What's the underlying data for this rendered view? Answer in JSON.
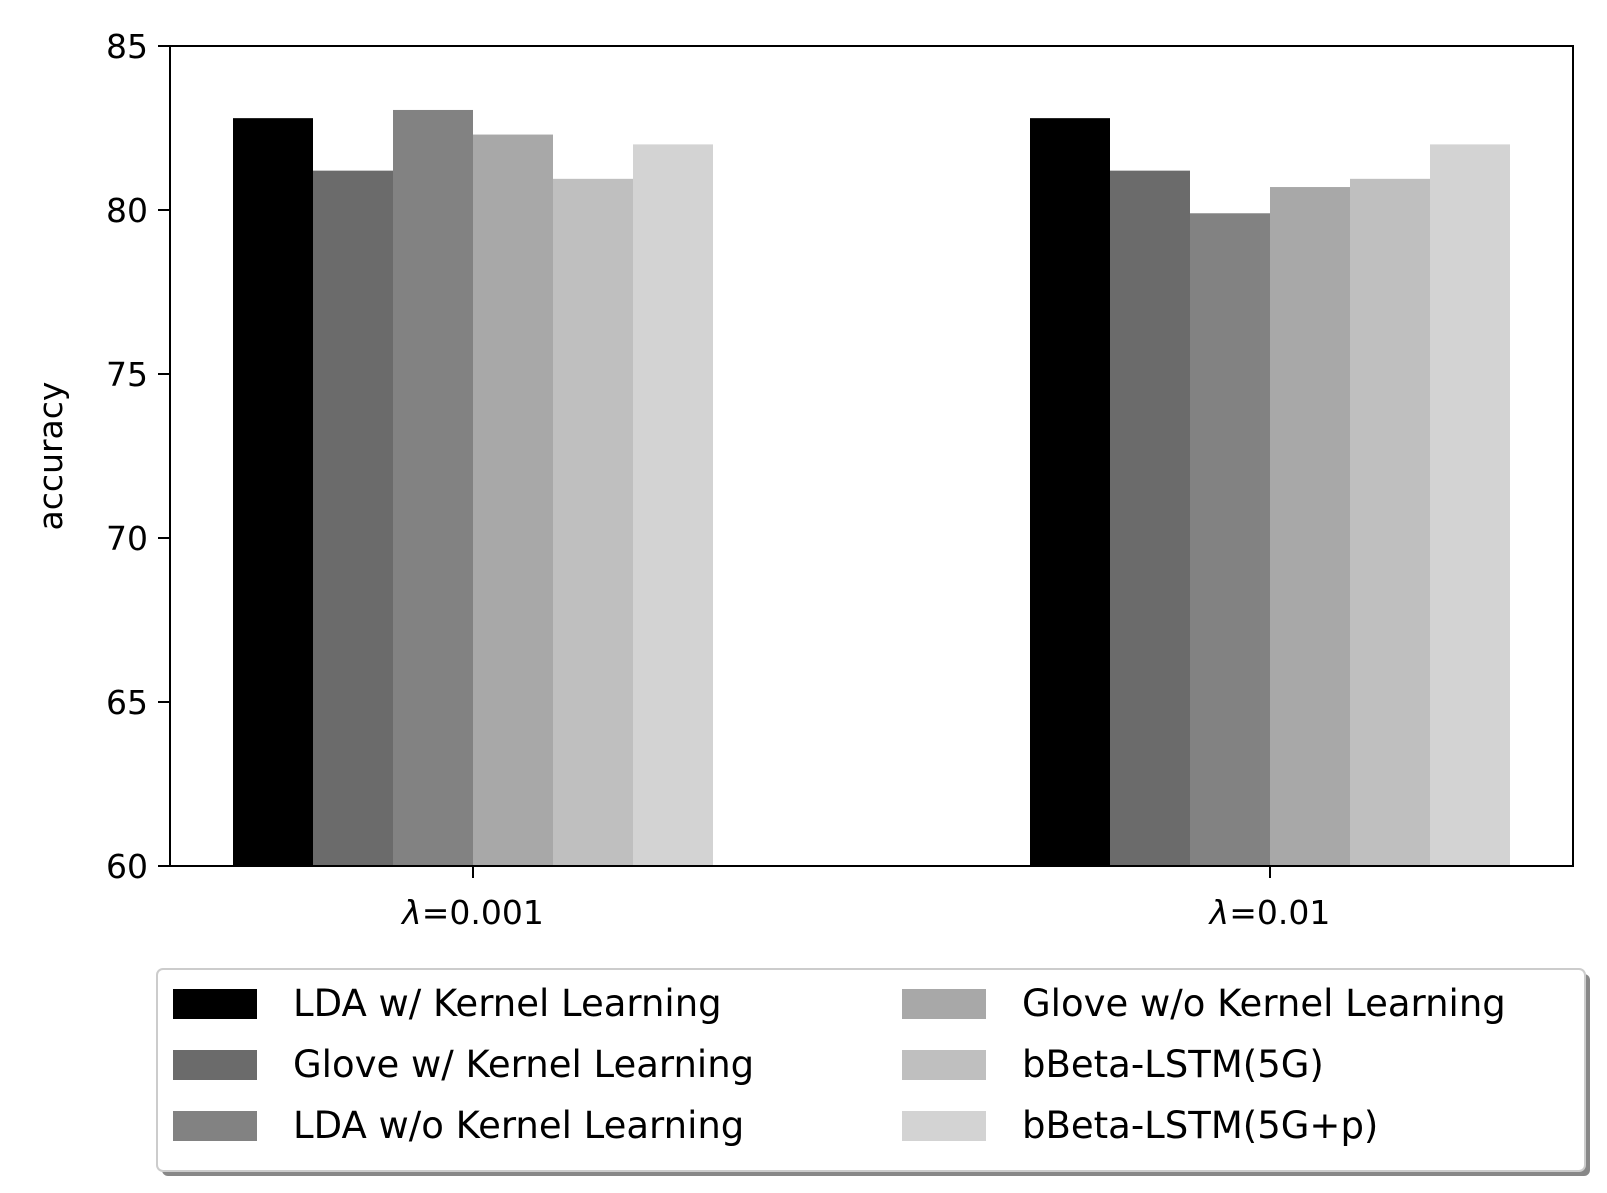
{
  "chart_data": {
    "type": "bar",
    "categories": [
      "λ=0.001",
      "λ=0.01"
    ],
    "category_labels": [
      {
        "symbol": "λ",
        "rest": "=0.001"
      },
      {
        "symbol": "λ",
        "rest": "=0.01"
      }
    ],
    "series": [
      {
        "name": "LDA w/ Kernel Learning",
        "values": [
          82.8,
          82.8
        ],
        "color": "#000000"
      },
      {
        "name": "Glove w/ Kernel Learning",
        "values": [
          81.2,
          81.2
        ],
        "color": "#6b6b6b"
      },
      {
        "name": "LDA w/o Kernel Learning",
        "values": [
          83.05,
          79.9
        ],
        "color": "#828282"
      },
      {
        "name": "Glove w/o Kernel Learning",
        "values": [
          82.3,
          80.7
        ],
        "color": "#a8a8a8"
      },
      {
        "name": "bBeta-LSTM(5G)",
        "values": [
          80.95,
          80.95
        ],
        "color": "#bfbfbf"
      },
      {
        "name": "bBeta-LSTM(5G+p)",
        "values": [
          82.0,
          82.0
        ],
        "color": "#d3d3d3"
      }
    ],
    "title": "",
    "xlabel": "",
    "ylabel": "accuracy",
    "ylim": [
      60,
      85
    ],
    "yticks": [
      "60",
      "65",
      "70",
      "75",
      "80",
      "85"
    ],
    "grid": false,
    "legend_position": "bottom"
  }
}
